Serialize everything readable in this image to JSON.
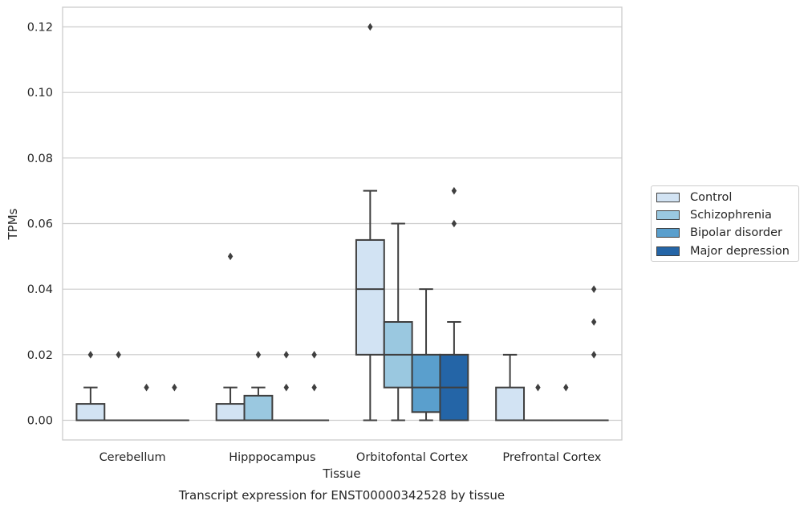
{
  "chart_data": {
    "type": "box",
    "title": "Transcript expression for ENST00000342528 by tissue",
    "xlabel": "Tissue",
    "ylabel": "TPMs",
    "ylim": [
      -0.006,
      0.126
    ],
    "yticks": [
      0.0,
      0.02,
      0.04,
      0.06,
      0.08,
      0.1,
      0.12
    ],
    "ytick_labels": [
      "0.00",
      "0.02",
      "0.04",
      "0.06",
      "0.08",
      "0.10",
      "0.12"
    ],
    "grid": "horizontal",
    "legend_position": "right",
    "categories": [
      "Cerebellum",
      "Hipppocampus",
      "Orbitofontal Cortex",
      "Prefrontal Cortex"
    ],
    "series": [
      {
        "name": "Control",
        "color": "#d2e3f3",
        "boxes": [
          {
            "q1": 0.0,
            "median": 0.0,
            "q3": 0.005,
            "whisker_low": 0.0,
            "whisker_high": 0.01,
            "outliers": [
              0.02
            ]
          },
          {
            "q1": 0.0,
            "median": 0.0,
            "q3": 0.005,
            "whisker_low": 0.0,
            "whisker_high": 0.01,
            "outliers": [
              0.05
            ]
          },
          {
            "q1": 0.02,
            "median": 0.04,
            "q3": 0.055,
            "whisker_low": 0.0,
            "whisker_high": 0.07,
            "outliers": [
              0.12
            ]
          },
          {
            "q1": 0.0,
            "median": 0.0,
            "q3": 0.01,
            "whisker_low": 0.0,
            "whisker_high": 0.02,
            "outliers": []
          }
        ]
      },
      {
        "name": "Schizophrenia",
        "color": "#9ac8e0",
        "boxes": [
          {
            "q1": 0.0,
            "median": 0.0,
            "q3": 0.0,
            "whisker_low": 0.0,
            "whisker_high": 0.0,
            "outliers": [
              0.02
            ]
          },
          {
            "q1": 0.0,
            "median": 0.0,
            "q3": 0.0075,
            "whisker_low": 0.0,
            "whisker_high": 0.01,
            "outliers": [
              0.02
            ]
          },
          {
            "q1": 0.01,
            "median": 0.02,
            "q3": 0.03,
            "whisker_low": 0.0,
            "whisker_high": 0.06,
            "outliers": []
          },
          {
            "q1": 0.0,
            "median": 0.0,
            "q3": 0.0,
            "whisker_low": 0.0,
            "whisker_high": 0.0,
            "outliers": [
              0.01
            ]
          }
        ]
      },
      {
        "name": "Bipolar disorder",
        "color": "#5a9fcd",
        "boxes": [
          {
            "q1": 0.0,
            "median": 0.0,
            "q3": 0.0,
            "whisker_low": 0.0,
            "whisker_high": 0.0,
            "outliers": [
              0.01
            ]
          },
          {
            "q1": 0.0,
            "median": 0.0,
            "q3": 0.0,
            "whisker_low": 0.0,
            "whisker_high": 0.0,
            "outliers": [
              0.01,
              0.02
            ]
          },
          {
            "q1": 0.0025,
            "median": 0.01,
            "q3": 0.02,
            "whisker_low": 0.0,
            "whisker_high": 0.04,
            "outliers": []
          },
          {
            "q1": 0.0,
            "median": 0.0,
            "q3": 0.0,
            "whisker_low": 0.0,
            "whisker_high": 0.0,
            "outliers": [
              0.01
            ]
          }
        ]
      },
      {
        "name": "Major depression",
        "color": "#2465a7",
        "boxes": [
          {
            "q1": 0.0,
            "median": 0.0,
            "q3": 0.0,
            "whisker_low": 0.0,
            "whisker_high": 0.0,
            "outliers": [
              0.01
            ]
          },
          {
            "q1": 0.0,
            "median": 0.0,
            "q3": 0.0,
            "whisker_low": 0.0,
            "whisker_high": 0.0,
            "outliers": [
              0.01,
              0.02
            ]
          },
          {
            "q1": 0.0,
            "median": 0.01,
            "q3": 0.02,
            "whisker_low": 0.0,
            "whisker_high": 0.03,
            "outliers": [
              0.06,
              0.07
            ]
          },
          {
            "q1": 0.0,
            "median": 0.0,
            "q3": 0.0,
            "whisker_low": 0.0,
            "whisker_high": 0.0,
            "outliers": [
              0.02,
              0.03,
              0.04
            ]
          }
        ]
      }
    ]
  }
}
